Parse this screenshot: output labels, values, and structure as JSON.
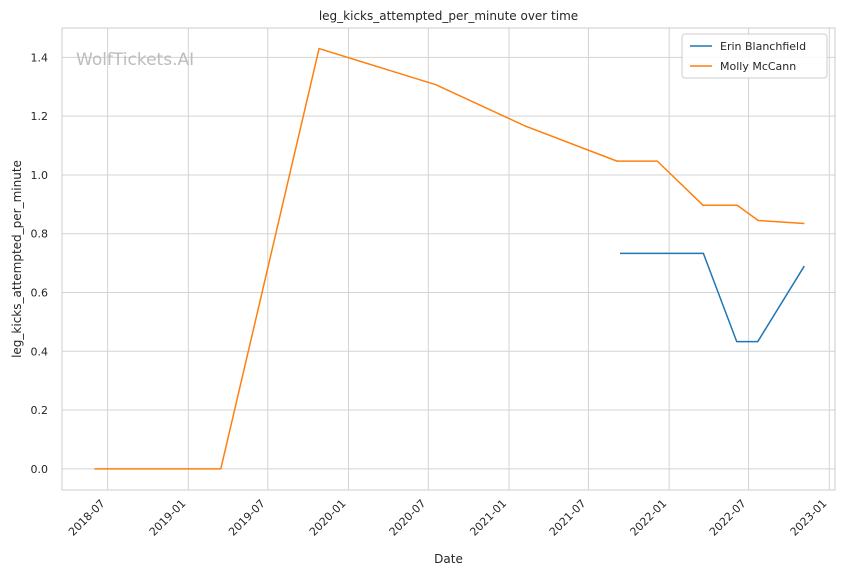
{
  "chart_data": {
    "type": "line",
    "title": "leg_kicks_attempted_per_minute over time",
    "xlabel": "Date",
    "ylabel": "leg_kicks_attempted_per_minute",
    "watermark": "WolfTickets.AI",
    "xlim": [
      "2018-03-19",
      "2023-01-14"
    ],
    "ylim": [
      -0.072,
      1.5
    ],
    "x_ticks": [
      "2018-07-01",
      "2019-01-01",
      "2019-07-01",
      "2020-01-01",
      "2020-07-01",
      "2021-01-01",
      "2021-07-01",
      "2022-01-01",
      "2022-07-01",
      "2023-01-01"
    ],
    "x_tick_labels": [
      "2018-07",
      "2019-01",
      "2019-07",
      "2020-01",
      "2020-07",
      "2021-01",
      "2021-07",
      "2022-01",
      "2022-07",
      "2023-01"
    ],
    "y_ticks": [
      0.0,
      0.2,
      0.4,
      0.6,
      0.8,
      1.0,
      1.2,
      1.4
    ],
    "y_tick_labels": [
      "0.0",
      "0.2",
      "0.4",
      "0.6",
      "0.8",
      "1.0",
      "1.2",
      "1.4"
    ],
    "grid": true,
    "legend_position": "top-right",
    "series": [
      {
        "name": "Erin Blanchfield",
        "color": "#1f77b4",
        "x": [
          "2021-09-11",
          "2022-03-20",
          "2022-06-04",
          "2022-07-22",
          "2022-11-05"
        ],
        "y": [
          0.733,
          0.733,
          0.433,
          0.433,
          0.69
        ]
      },
      {
        "name": "Molly McCann",
        "color": "#ff7f0e",
        "x": [
          "2018-06-01",
          "2019-03-16",
          "2019-10-26",
          "2020-07-18",
          "2021-02-06",
          "2021-09-04",
          "2021-12-05",
          "2022-03-19",
          "2022-06-05",
          "2022-07-23",
          "2022-11-05"
        ],
        "y": [
          0.0,
          0.0,
          1.43,
          1.307,
          1.167,
          1.047,
          1.047,
          0.897,
          0.897,
          0.845,
          0.835
        ]
      }
    ]
  }
}
